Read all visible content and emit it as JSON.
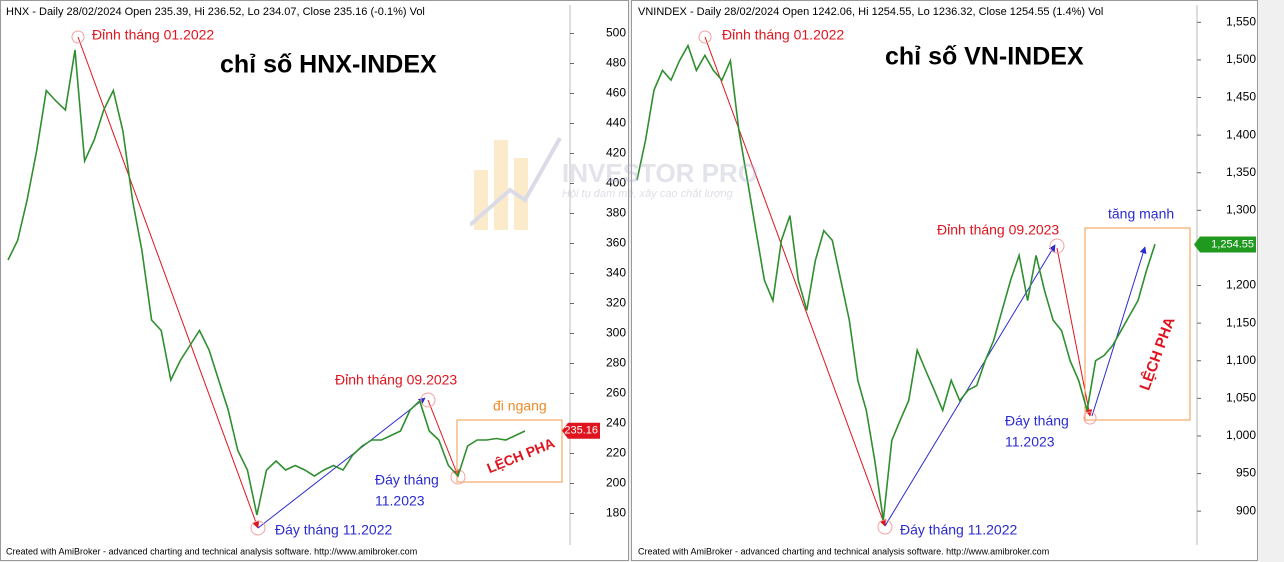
{
  "chart_data": [
    {
      "type": "line",
      "title": "HNX - Daily 28/02/2024 Open 235.39, Hi 236.52, Lo 234.07, Close 235.16 (-0.1%) Vol",
      "values": [
        349,
        362,
        389,
        422,
        462,
        455,
        449,
        489,
        415,
        429,
        449,
        462,
        435,
        389,
        355,
        309,
        302,
        269,
        282,
        292,
        302,
        289,
        269,
        249,
        222,
        209,
        179,
        209,
        215,
        209,
        212,
        209,
        205,
        209,
        212,
        209,
        219,
        225,
        229,
        229,
        232,
        235,
        249,
        255,
        235,
        229,
        212,
        205,
        225,
        229,
        229,
        230,
        229,
        232,
        235
      ],
      "color": "#2f8f2f",
      "ylim": [
        159,
        519
      ],
      "yticks": [
        180,
        200,
        220,
        240,
        260,
        280,
        300,
        320,
        340,
        360,
        380,
        400,
        420,
        440,
        460,
        480,
        500
      ],
      "last_price": 235.16,
      "last_price_color": "#e0141e",
      "annotations": [
        "chỉ số HNX-INDEX",
        "Đỉnh tháng 01.2022",
        "Đỉnh tháng 09.2023",
        "đi ngang",
        "Đáy tháng 11.2022",
        "Đáy tháng",
        "11.2023",
        "LỆCH PHA"
      ],
      "credit": "Created with AmiBroker - advanced charting and technical analysis software. http://www.amibroker.com"
    },
    {
      "type": "line",
      "title": "VNINDEX - Daily 28/02/2024 Open 1242.06, Hi 1254.55, Lo 1236.32, Close 1254.55 (1.4%) Vol",
      "values": [
        1340,
        1393,
        1460,
        1486,
        1473,
        1499,
        1519,
        1486,
        1506,
        1486,
        1473,
        1499,
        1406,
        1340,
        1273,
        1207,
        1180,
        1260,
        1293,
        1207,
        1167,
        1233,
        1273,
        1260,
        1207,
        1154,
        1074,
        1034,
        967,
        888,
        994,
        1021,
        1047,
        1114,
        1087,
        1061,
        1034,
        1074,
        1047,
        1061,
        1067,
        1100,
        1127,
        1167,
        1207,
        1240,
        1180,
        1240,
        1193,
        1154,
        1140,
        1100,
        1074,
        1034,
        1100,
        1107,
        1120,
        1140,
        1160,
        1180,
        1220,
        1255
      ],
      "color": "#2f8f2f",
      "ylim": [
        855,
        1573
      ],
      "yticks": [
        900,
        950,
        {
          "value": 1000,
          "label": "1,000"
        },
        {
          "value": 1050,
          "label": "1,050"
        },
        {
          "value": 1100,
          "label": "1,100"
        },
        {
          "value": 1150,
          "label": "1,150"
        },
        {
          "value": 1200,
          "label": "1,200"
        },
        {
          "value": 1250,
          "label": "1,250"
        },
        {
          "value": 1300,
          "label": "1,300"
        },
        {
          "value": 1350,
          "label": "1,350"
        },
        {
          "value": 1400,
          "label": "1,400"
        },
        {
          "value": 1450,
          "label": "1,450"
        },
        {
          "value": 1500,
          "label": "1,500"
        },
        {
          "value": 1550,
          "label": "1,550"
        }
      ],
      "last_price": {
        "value": 1254.55,
        "label": "1,254.55"
      },
      "last_price_color": "#1f9a1f",
      "annotations": [
        "chỉ số VN-INDEX",
        "Đỉnh tháng 01.2022",
        "Đỉnh tháng 09.2023",
        "tăng mạnh",
        "Đáy tháng",
        "11.2023",
        "Đáy tháng 11.2022",
        "LỆCH PHA"
      ],
      "credit": "Created with AmiBroker - advanced charting and technical analysis software. http://www.amibroker.com"
    }
  ],
  "watermark": {
    "brand": "INVESTOR PRO",
    "slogan": "Hội tụ đam mê, xây cao chất lượng"
  }
}
